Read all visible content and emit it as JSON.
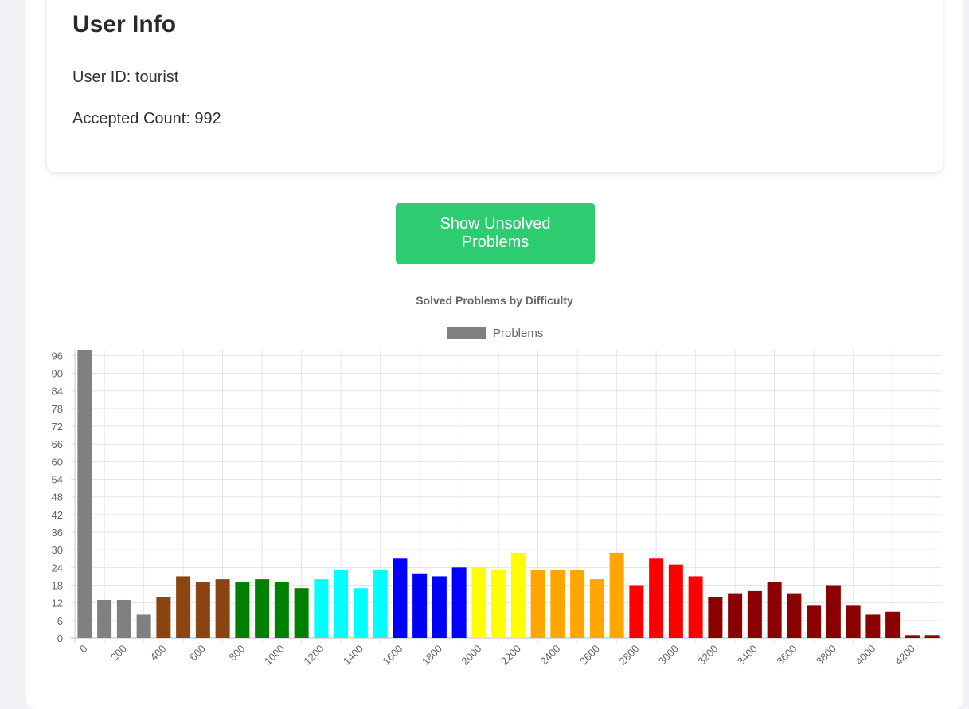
{
  "user_info": {
    "title": "User Info",
    "user_id_label": "User ID: tourist",
    "accepted_label": "Accepted Count: 992"
  },
  "actions": {
    "show_unsolved_label": "Show Unsolved Problems"
  },
  "chart_data": {
    "type": "bar",
    "title": "Solved Problems by Difficulty",
    "legend_position": "top-center",
    "grid": true,
    "ylim": [
      0,
      98
    ],
    "yticks": [
      0,
      6,
      12,
      18,
      24,
      30,
      36,
      42,
      48,
      54,
      60,
      66,
      72,
      78,
      84,
      90,
      96
    ],
    "categories": [
      0,
      100,
      200,
      300,
      400,
      500,
      600,
      700,
      800,
      900,
      1000,
      1100,
      1200,
      1300,
      1400,
      1500,
      1600,
      1700,
      1800,
      1900,
      2000,
      2100,
      2200,
      2300,
      2400,
      2500,
      2600,
      2700,
      2800,
      2900,
      3000,
      3100,
      3200,
      3300,
      3400,
      3500,
      3600,
      3700,
      3800,
      3900,
      4000,
      4100,
      4200,
      4300
    ],
    "xtick_labels": [
      "0",
      "200",
      "400",
      "600",
      "800",
      "1000",
      "1200",
      "1400",
      "1600",
      "1800",
      "2000",
      "2200",
      "2400",
      "2600",
      "2800",
      "3000",
      "3200",
      "3400",
      "3600",
      "3800",
      "4000",
      "4200"
    ],
    "series": [
      {
        "name": "Problems",
        "legend_color": "#808080",
        "values": [
          98,
          13,
          13,
          8,
          14,
          21,
          19,
          20,
          19,
          20,
          19,
          17,
          20,
          23,
          17,
          23,
          27,
          22,
          21,
          24,
          24,
          23,
          29,
          23,
          23,
          23,
          20,
          29,
          18,
          27,
          25,
          21,
          14,
          15,
          16,
          19,
          15,
          11,
          18,
          11,
          8,
          9,
          1,
          1
        ],
        "colors": [
          "#808080",
          "#808080",
          "#808080",
          "#808080",
          "#8b4513",
          "#8b4513",
          "#8b4513",
          "#8b4513",
          "#008000",
          "#008000",
          "#008000",
          "#008000",
          "#00ffff",
          "#00ffff",
          "#00ffff",
          "#00ffff",
          "#0000ff",
          "#0000ff",
          "#0000ff",
          "#0000ff",
          "#ffff00",
          "#ffff00",
          "#ffff00",
          "#ffa500",
          "#ffa500",
          "#ffa500",
          "#ffa500",
          "#ffa500",
          "#ff0000",
          "#ff0000",
          "#ff0000",
          "#ff0000",
          "#8b0000",
          "#8b0000",
          "#8b0000",
          "#8b0000",
          "#8b0000",
          "#8b0000",
          "#8b0000",
          "#8b0000",
          "#8b0000",
          "#8b0000",
          "#8b0000",
          "#8b0000"
        ]
      }
    ]
  }
}
